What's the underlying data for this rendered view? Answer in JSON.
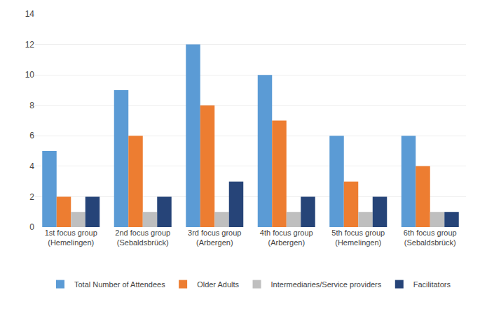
{
  "chart_data": {
    "type": "bar",
    "categories": [
      "1st focus group\n(Hemelingen)",
      "2nd focus group\n(Sebaldsbrück)",
      "3rd focus group\n(Arbergen)",
      "4th focus group\n(Arbergen)",
      "5th focus group\n(Hemelingen)",
      "6th focus group\n(Sebaldsbrück)"
    ],
    "series": [
      {
        "name": "Total Number of Attendees",
        "color": "#5B9BD5",
        "values": [
          5,
          9,
          12,
          10,
          6,
          6
        ]
      },
      {
        "name": "Older Adults",
        "color": "#ED7D31",
        "values": [
          2,
          6,
          8,
          7,
          3,
          4
        ]
      },
      {
        "name": "Intermediaries/Service providers",
        "color": "#BFBFBF",
        "values": [
          1,
          1,
          1,
          1,
          1,
          1
        ]
      },
      {
        "name": "Facilitators",
        "color": "#264478",
        "values": [
          2,
          2,
          3,
          2,
          2,
          1
        ]
      }
    ],
    "ylim": [
      0,
      14
    ],
    "yticks": [
      0,
      2,
      4,
      6,
      8,
      10,
      12,
      14
    ],
    "grid": true,
    "legend": "bottom"
  }
}
